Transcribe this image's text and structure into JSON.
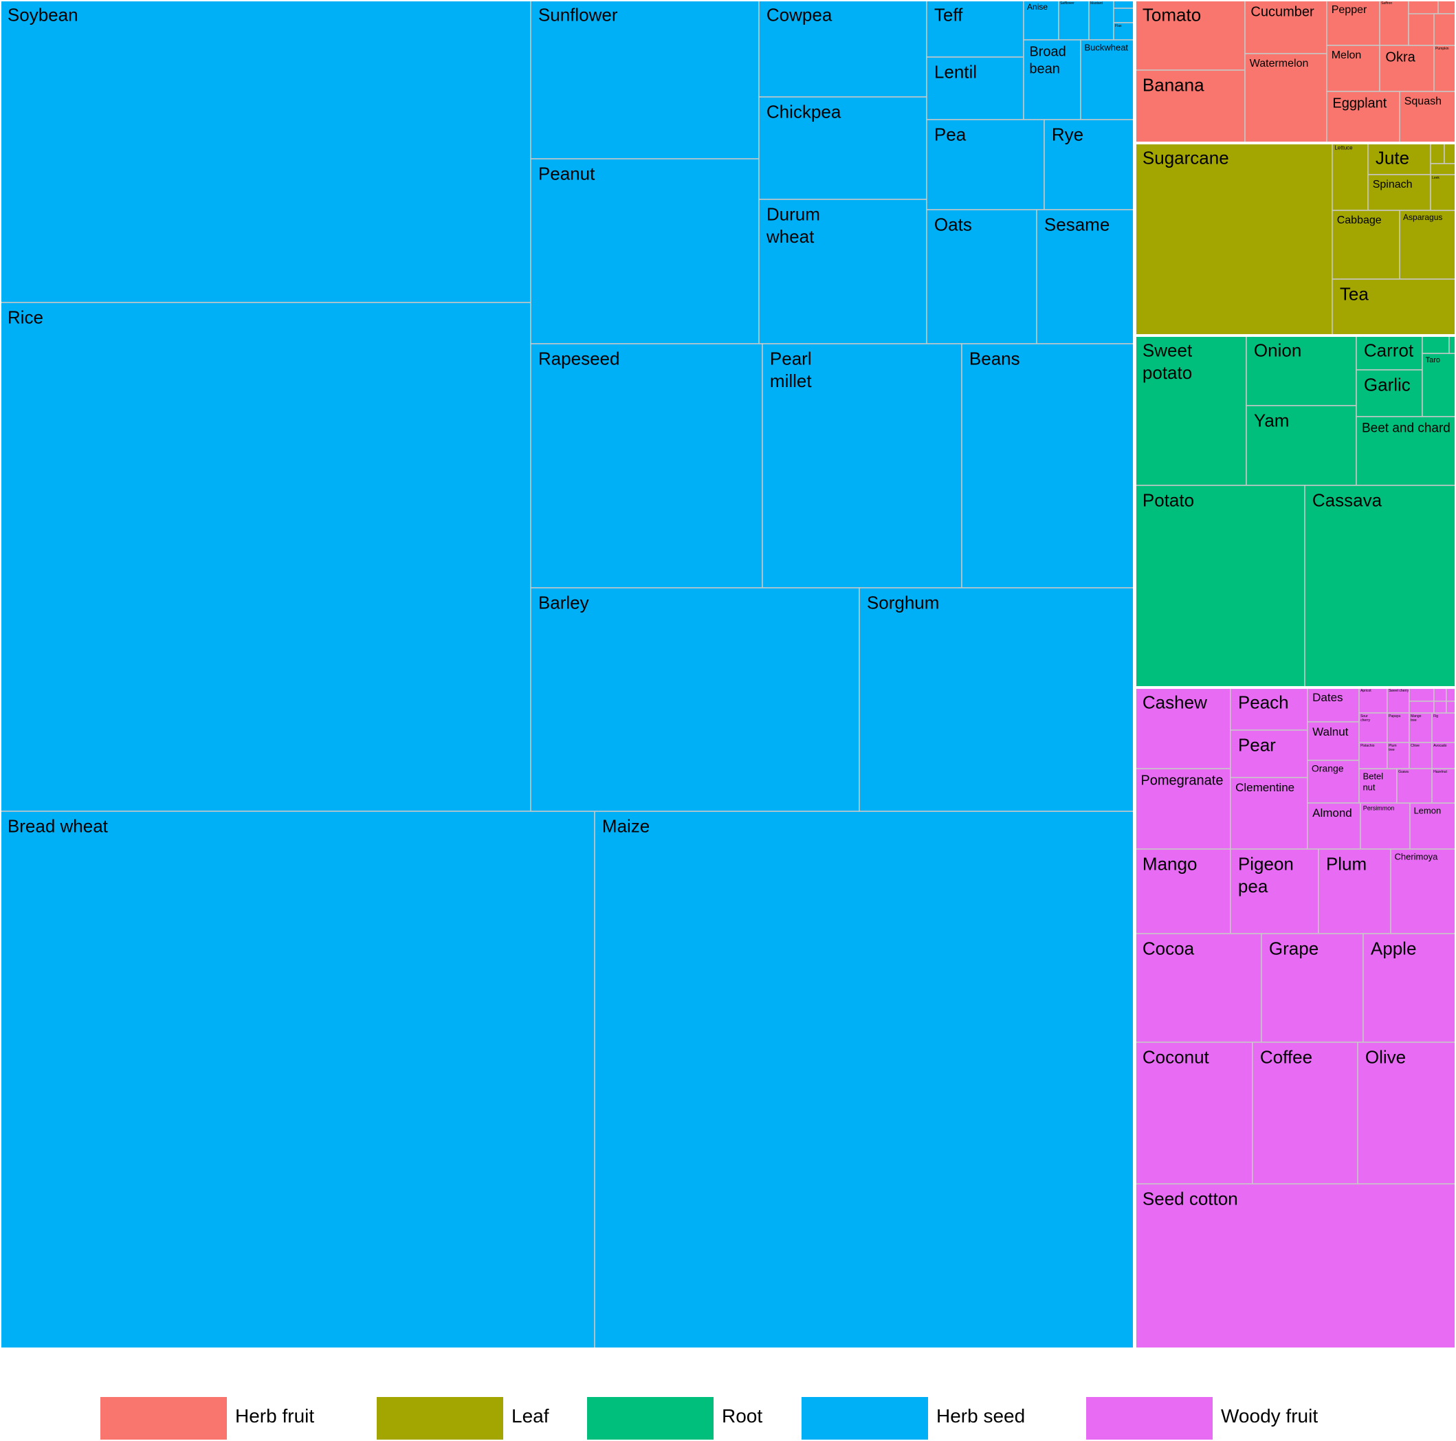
{
  "chart_data": {
    "type": "treemap",
    "title": "",
    "groups": [
      {
        "name": "Herb seed",
        "color": "#00B0F6",
        "items": [
          {
            "label": "Soybean"
          },
          {
            "label": "Rice"
          },
          {
            "label": "Bread wheat"
          },
          {
            "label": "Maize"
          },
          {
            "label": "Sunflower"
          },
          {
            "label": "Peanut"
          },
          {
            "label": "Cowpea"
          },
          {
            "label": "Chickpea"
          },
          {
            "label": "Durum wheat"
          },
          {
            "label": "Teff"
          },
          {
            "label": "Lentil"
          },
          {
            "label": "Anise"
          },
          {
            "label": "Safflower"
          },
          {
            "label": "Mustard"
          },
          {
            "label": ""
          },
          {
            "label": ""
          },
          {
            "label": "Flax"
          },
          {
            "label": "Broad bean"
          },
          {
            "label": "Buckwheat"
          },
          {
            "label": "Pea"
          },
          {
            "label": "Rye"
          },
          {
            "label": "Oats"
          },
          {
            "label": "Sesame"
          },
          {
            "label": "Rapeseed"
          },
          {
            "label": "Pearl millet"
          },
          {
            "label": "Beans"
          },
          {
            "label": "Barley"
          },
          {
            "label": "Sorghum"
          }
        ]
      },
      {
        "name": "Herb fruit",
        "color": "#F8766D",
        "items": [
          {
            "label": "Tomato"
          },
          {
            "label": "Banana"
          },
          {
            "label": "Cucumber"
          },
          {
            "label": "Watermelon"
          },
          {
            "label": "Pepper"
          },
          {
            "label": "Melon"
          },
          {
            "label": "Saffron"
          },
          {
            "label": "Okra"
          },
          {
            "label": ""
          },
          {
            "label": "Eggplant"
          },
          {
            "label": "Squash"
          },
          {
            "label": "Pumpkin"
          },
          {
            "label": ""
          },
          {
            "label": ""
          },
          {
            "label": ""
          }
        ]
      },
      {
        "name": "Leaf",
        "color": "#A3A500",
        "items": [
          {
            "label": "Sugarcane"
          },
          {
            "label": "Lettuce"
          },
          {
            "label": "Jute"
          },
          {
            "label": "Spinach"
          },
          {
            "label": "Cabbage"
          },
          {
            "label": "Asparagus"
          },
          {
            "label": "Tea"
          },
          {
            "label": "Leek"
          },
          {
            "label": ""
          },
          {
            "label": ""
          },
          {
            "label": ""
          }
        ]
      },
      {
        "name": "Root",
        "color": "#00BF7D",
        "items": [
          {
            "label": "Sweet potato"
          },
          {
            "label": "Onion"
          },
          {
            "label": "Yam"
          },
          {
            "label": "Carrot"
          },
          {
            "label": "Garlic"
          },
          {
            "label": "Taro"
          },
          {
            "label": "Beet and chard"
          },
          {
            "label": "Potato"
          },
          {
            "label": "Cassava"
          },
          {
            "label": ""
          },
          {
            "label": ""
          }
        ]
      },
      {
        "name": "Woody fruit",
        "color": "#E76BF3",
        "items": [
          {
            "label": "Cashew"
          },
          {
            "label": "Pomegranate"
          },
          {
            "label": "Peach"
          },
          {
            "label": "Pear"
          },
          {
            "label": "Clementine"
          },
          {
            "label": "Dates"
          },
          {
            "label": "Walnut"
          },
          {
            "label": "Orange"
          },
          {
            "label": "Betel nut"
          },
          {
            "label": "Almond"
          },
          {
            "label": "Persimmon"
          },
          {
            "label": "Lemon"
          },
          {
            "label": "Apricot"
          },
          {
            "label": "Sweet cherry"
          },
          {
            "label": "Sour cherry"
          },
          {
            "label": "Papaya"
          },
          {
            "label": "Mango tree"
          },
          {
            "label": "Fig"
          },
          {
            "label": "Pistachio"
          },
          {
            "label": "Plum tree"
          },
          {
            "label": "Chive"
          },
          {
            "label": "Avocado"
          },
          {
            "label": "Guava"
          },
          {
            "label": "Hazelnut"
          },
          {
            "label": ""
          },
          {
            "label": ""
          },
          {
            "label": ""
          },
          {
            "label": ""
          },
          {
            "label": ""
          },
          {
            "label": ""
          },
          {
            "label": "Mango"
          },
          {
            "label": "Pigeon pea"
          },
          {
            "label": "Plum"
          },
          {
            "label": "Cherimoya"
          },
          {
            "label": "Cocoa"
          },
          {
            "label": "Grape"
          },
          {
            "label": "Apple"
          },
          {
            "label": "Coconut"
          },
          {
            "label": "Coffee"
          },
          {
            "label": "Olive"
          },
          {
            "label": "Seed cotton"
          }
        ]
      }
    ],
    "legend": {
      "position": "bottom",
      "entries": [
        {
          "name": "Herb fruit",
          "color": "#F8766D"
        },
        {
          "name": "Leaf",
          "color": "#A3A500"
        },
        {
          "name": "Root",
          "color": "#00BF7D"
        },
        {
          "name": "Herb seed",
          "color": "#00B0F6"
        },
        {
          "name": "Woody fruit",
          "color": "#E76BF3"
        }
      ]
    }
  }
}
